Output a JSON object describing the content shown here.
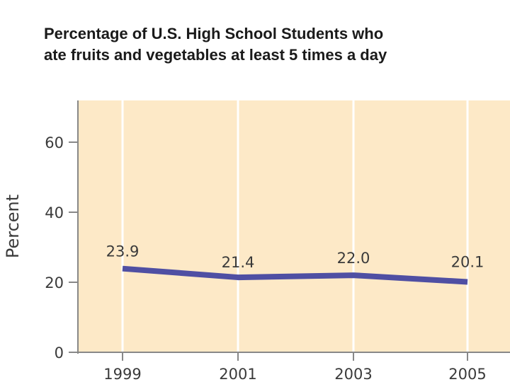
{
  "title_line_1": "Percentage of U.S. High School Students who",
  "title_line_2": "ate fruits and vegetables at least 5 times a day",
  "colors": {
    "plot_background": "#fde9c7",
    "gridline": "#ffffff",
    "axis": "#888888",
    "series_line": "#4f4fa3",
    "text": "#3a3a3a"
  },
  "chart_data": {
    "type": "line",
    "title": "Percentage of U.S. High School Students who ate fruits and vegetables at least 5 times a day",
    "xlabel": "",
    "ylabel": "Percent",
    "categories": [
      "1999",
      "2001",
      "2003",
      "2005"
    ],
    "series": [
      {
        "values": [
          23.9,
          21.4,
          22.0,
          20.1
        ],
        "labels": [
          "23.9",
          "21.4",
          "22.0",
          "20.1"
        ]
      }
    ],
    "yticks": [
      "0",
      "20",
      "40",
      "60"
    ],
    "ylim": [
      0,
      70
    ],
    "grid": true,
    "legend": "none"
  }
}
